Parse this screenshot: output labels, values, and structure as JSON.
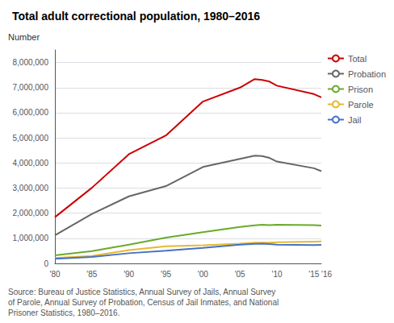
{
  "chart_data": {
    "type": "line",
    "title": "Total adult correctional population, 1980–2016",
    "ylabel": "Number",
    "annotations": [
      "Source: Bureau of Justice Statistics, Annual Survey of Jails, Annual Survey\nof Parole, Annual Survey of Probation, Census of Jail Inmates, and National\nPrisoner Statistics, 1980–2016."
    ],
    "x": [
      1980,
      1985,
      1990,
      1995,
      2000,
      2005,
      2007,
      2008,
      2009,
      2010,
      2015,
      2016
    ],
    "series": [
      {
        "name": "Total",
        "color": "#cc0000",
        "values": [
          1840000,
          3011000,
          4348000,
          5093000,
          6445000,
          6999000,
          7339000,
          7308000,
          7239000,
          7076000,
          6741000,
          6613000
        ]
      },
      {
        "name": "Probation",
        "color": "#666666",
        "values": [
          1118000,
          1968000,
          2670000,
          3078000,
          3839000,
          4162000,
          4293000,
          4271000,
          4199000,
          4056000,
          3789000,
          3673000
        ]
      },
      {
        "name": "Prison",
        "color": "#6aaa2a",
        "values": [
          319000,
          487000,
          743000,
          1026000,
          1245000,
          1448000,
          1518000,
          1541000,
          1524000,
          1543000,
          1527000,
          1506000
        ]
      },
      {
        "name": "Parole",
        "color": "#e8b830",
        "values": [
          220000,
          300000,
          531000,
          679000,
          723000,
          784000,
          826000,
          828000,
          824000,
          840000,
          870000,
          874000
        ]
      },
      {
        "name": "Jail",
        "color": "#4472c4",
        "values": [
          182000,
          256000,
          405000,
          507000,
          621000,
          747000,
          776000,
          785000,
          767000,
          748000,
          728000,
          740000
        ]
      }
    ],
    "xlim": [
      1980,
      2016
    ],
    "xticks": [
      {
        "value": 1980,
        "label": "'80"
      },
      {
        "value": 1985,
        "label": "'85"
      },
      {
        "value": 1990,
        "label": "'90"
      },
      {
        "value": 1995,
        "label": "'95"
      },
      {
        "value": 2000,
        "label": "'00"
      },
      {
        "value": 2005,
        "label": "'05"
      },
      {
        "value": 2010,
        "label": "'10"
      },
      {
        "value": 2015,
        "label": "'15"
      },
      {
        "value": 2016,
        "label": "'16"
      }
    ],
    "ylim": [
      0,
      8500000
    ],
    "yticks": [
      0,
      {
        "value": 1000000,
        "label": "1,000,000"
      },
      {
        "value": 2000000,
        "label": "2,000,000"
      },
      {
        "value": 3000000,
        "label": "3,000,000"
      },
      {
        "value": 4000000,
        "label": "4,000,000"
      },
      {
        "value": 5000000,
        "label": "5,000,000"
      },
      {
        "value": 6000000,
        "label": "6,000,000"
      },
      {
        "value": 7000000,
        "label": "7,000,000"
      },
      {
        "value": 8000000,
        "label": "8,000,000"
      }
    ],
    "grid": true,
    "legend": "right"
  }
}
